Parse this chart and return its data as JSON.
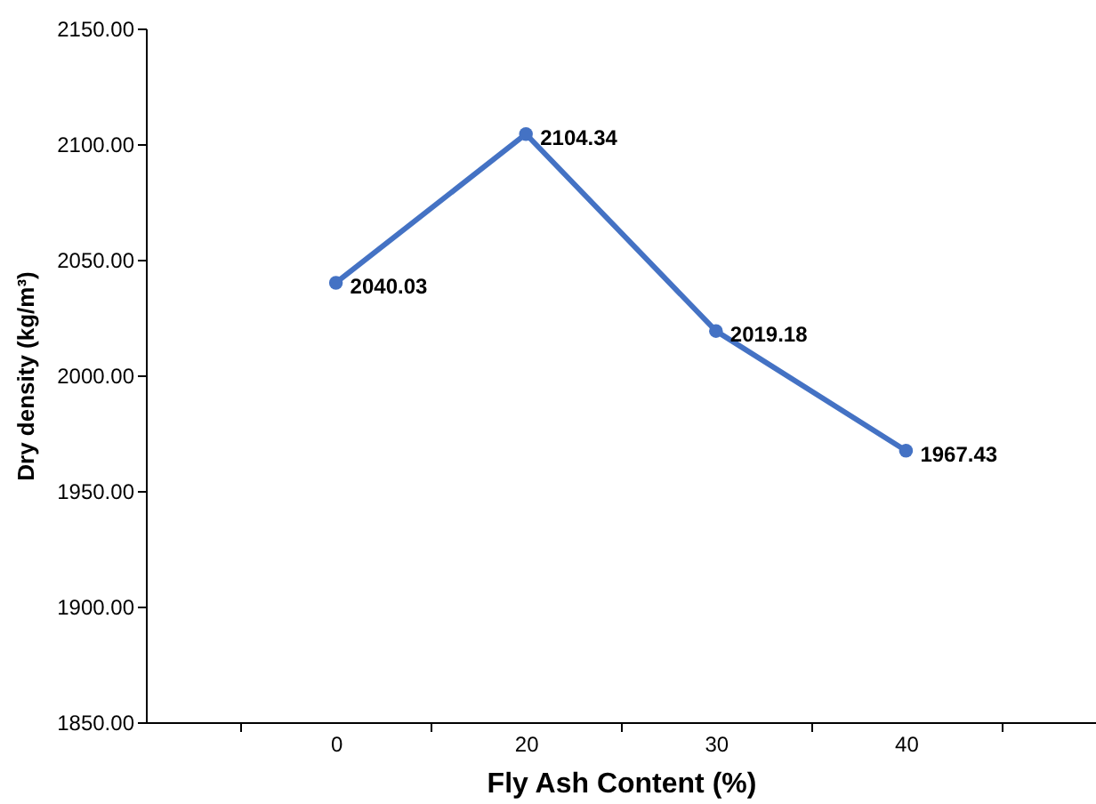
{
  "chart_data": {
    "type": "line",
    "xlabel": "Fly Ash Content (%)",
    "ylabel": "Dry density (kg/m³)",
    "categories": [
      "0",
      "20",
      "30",
      "40"
    ],
    "series": [
      {
        "color": "#4472c4",
        "values": [
          2040.03,
          2104.34,
          2019.18,
          1967.43
        ]
      }
    ],
    "ylim": [
      1850,
      2150
    ],
    "yticks": [
      {
        "value": 1850,
        "label": "1850.00"
      },
      {
        "value": 1900,
        "label": "1900.00"
      },
      {
        "value": 1950,
        "label": "1950.00"
      },
      {
        "value": 2000,
        "label": "2000.00"
      },
      {
        "value": 2050,
        "label": "2050.00"
      },
      {
        "value": 2100,
        "label": "2100.00"
      },
      {
        "value": 2150,
        "label": "2150.00"
      }
    ],
    "grid": false,
    "legend": false,
    "marker": "circle",
    "line_style": "solid",
    "data_labels": true
  }
}
